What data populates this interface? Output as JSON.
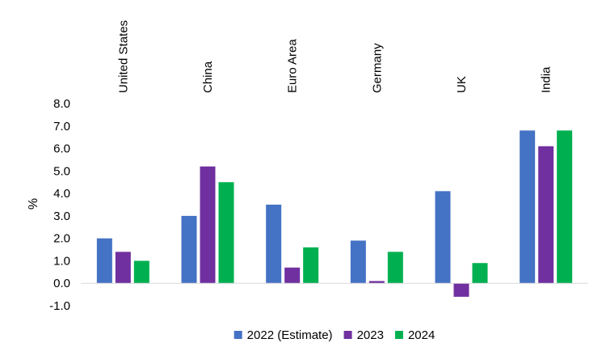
{
  "chart_data": {
    "type": "bar",
    "title": "",
    "xlabel": "",
    "ylabel": "%",
    "ylim": [
      -1.0,
      8.0
    ],
    "yticks": [
      "8.0",
      "7.0",
      "6.0",
      "5.0",
      "4.0",
      "3.0",
      "2.0",
      "1.0",
      "0.0",
      "-1.0"
    ],
    "grid": false,
    "legend": "bottom",
    "categories": [
      "United States",
      "China",
      "Euro Area",
      "Germany",
      "UK",
      "India"
    ],
    "series": [
      {
        "name": "2022 (Estimate)",
        "color": "#4472C4",
        "values": [
          2.0,
          3.0,
          3.5,
          1.9,
          4.1,
          6.8
        ]
      },
      {
        "name": "2023",
        "color": "#7030A0",
        "values": [
          1.4,
          5.2,
          0.7,
          0.1,
          -0.6,
          6.1
        ]
      },
      {
        "name": "2024",
        "color": "#00B050",
        "values": [
          1.0,
          4.5,
          1.6,
          1.4,
          0.9,
          6.8
        ]
      }
    ]
  }
}
